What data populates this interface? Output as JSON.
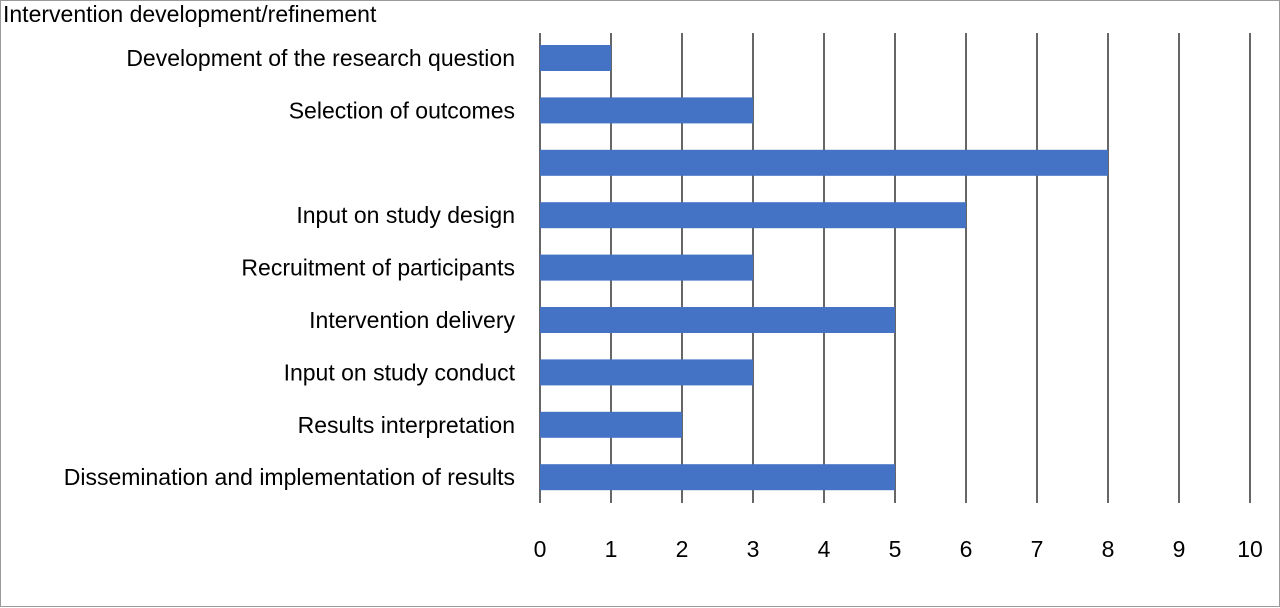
{
  "chart_data": {
    "type": "bar",
    "orientation": "horizontal",
    "top_label": "Intervention development/refinement",
    "categories": [
      "Development of the research question",
      "Selection of outcomes",
      "",
      "Input on study design",
      "Recruitment of participants",
      "Intervention delivery",
      "Input on study conduct",
      "Results interpretation",
      "Dissemination and implementation of results"
    ],
    "values": [
      1,
      3,
      8,
      6,
      3,
      5,
      3,
      2,
      5
    ],
    "xlim": [
      0,
      10
    ],
    "xticks": [
      "0",
      "1",
      "2",
      "3",
      "4",
      "5",
      "6",
      "7",
      "8",
      "9",
      "10"
    ],
    "grid": "vertical",
    "bar_color": "#4472C4",
    "grid_color": "#000000"
  }
}
